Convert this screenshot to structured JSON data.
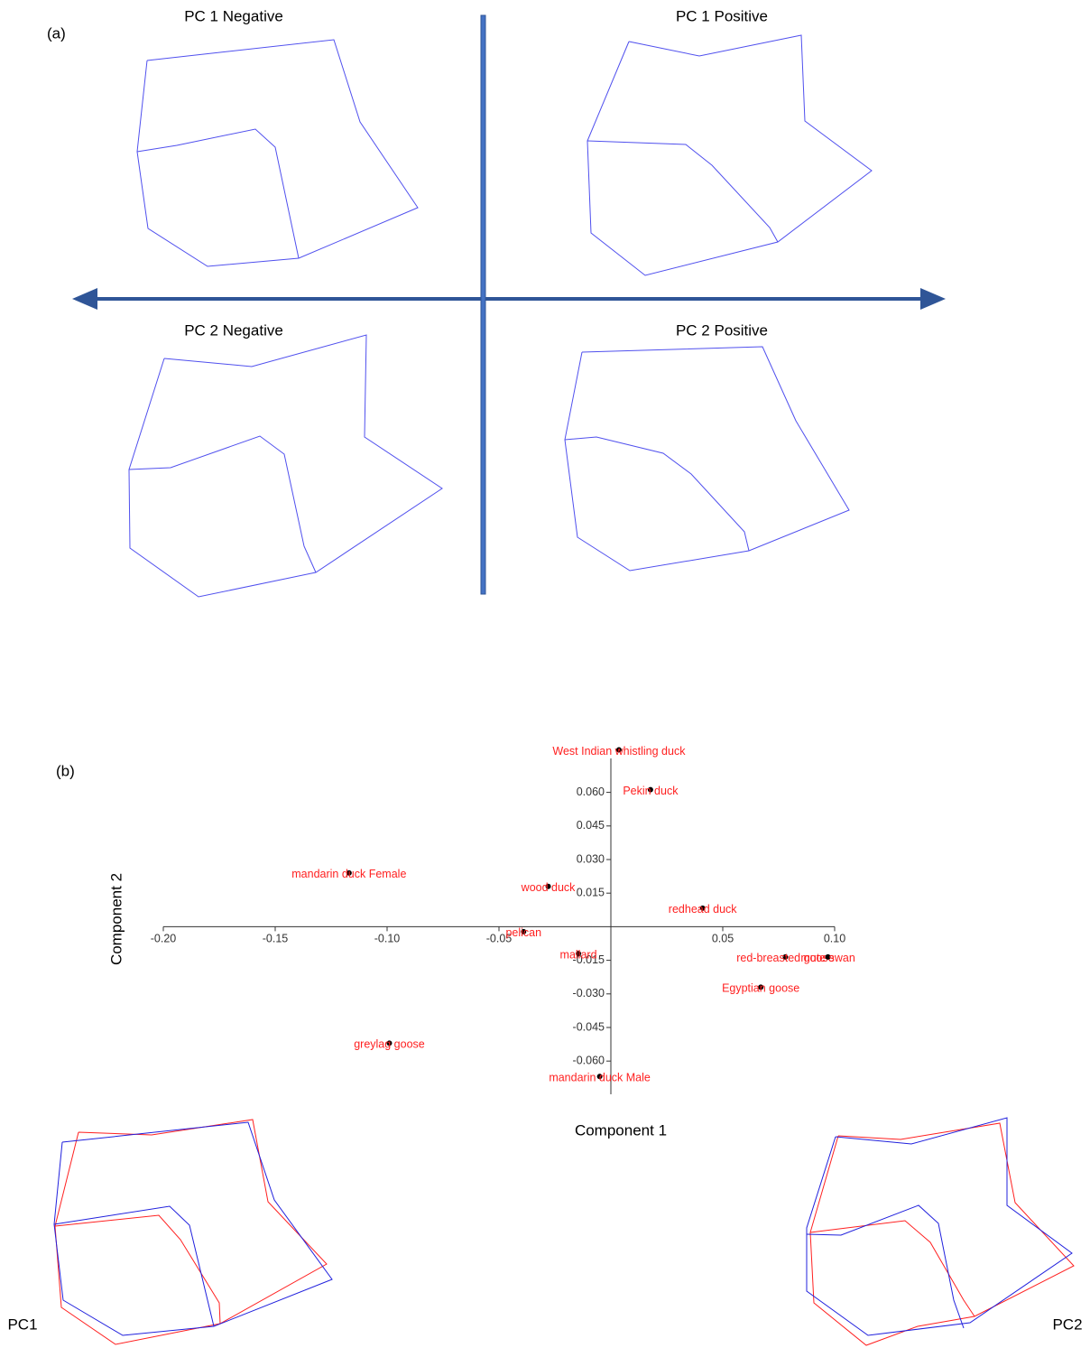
{
  "panel_a": {
    "label": "(a)",
    "titles": [
      "PC 1 Negative",
      "PC 1 Positive",
      "PC 2 Negative",
      "PC 2 Positive"
    ]
  },
  "chart_data": {
    "type": "scatter",
    "panel_label": "(b)",
    "x_label": "Component 1",
    "y_label": "Component 2",
    "labels": [
      "West Indian whistling duck",
      "Pekin duck",
      "mandarin duck Female",
      "wood duck",
      "redhead duck",
      "pelican",
      "mallard",
      "red-breasted goose",
      "mute swan",
      "Egyptian goose",
      "greylag goose",
      "mandarin duck Male"
    ],
    "x": [
      0.0036,
      0.0177,
      -0.117,
      -0.028,
      0.041,
      -0.039,
      -0.0145,
      0.078,
      0.097,
      0.067,
      -0.099,
      -0.005
    ],
    "values": [
      0.079,
      0.0612,
      0.024,
      0.018,
      0.0083,
      -0.0022,
      -0.012,
      -0.0135,
      -0.0135,
      -0.027,
      -0.052,
      -0.0669
    ],
    "color": "#ff2020",
    "xlim": [
      -0.2,
      0.1
    ],
    "ylim": [
      -0.07,
      0.08
    ],
    "xticks": [
      {
        "value": -0.2,
        "label": "-0.20"
      },
      {
        "value": -0.15,
        "label": "-0.15"
      },
      {
        "value": -0.1,
        "label": "-0.10"
      },
      {
        "value": -0.05,
        "label": "-0.05"
      },
      0.05,
      {
        "value": 0.1,
        "label": "0.10"
      }
    ],
    "yticks": [
      {
        "value": 0.06,
        "label": "0.060"
      },
      {
        "value": 0.045,
        "label": "0.045"
      },
      {
        "value": 0.03,
        "label": "0.030"
      },
      {
        "value": 0.015,
        "label": "0.015"
      },
      {
        "value": -0.015,
        "label": "-0.015"
      },
      {
        "value": -0.03,
        "label": "-0.030"
      },
      {
        "value": -0.045,
        "label": "-0.045"
      },
      {
        "value": -0.06,
        "label": "-0.060"
      }
    ]
  },
  "bottom": {
    "left_label": "PC1",
    "right_label": "PC2"
  }
}
